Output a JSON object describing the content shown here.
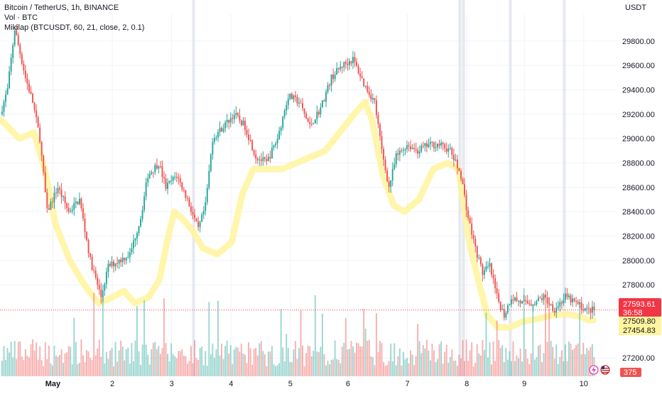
{
  "legend": {
    "symbol_line": "Bitcoin / TetherUS, 1h, BINANCE",
    "volume_line": "Vol · BTC",
    "indicator_line": "Mikilap (BTCUSDT, 60, 21, close, 2, 0.1)"
  },
  "price_axis": {
    "currency": "USDT",
    "ticks": [
      {
        "value": 29800,
        "label": "29800.00"
      },
      {
        "value": 29600,
        "label": "29600.00"
      },
      {
        "value": 29400,
        "label": "29400.00"
      },
      {
        "value": 29200,
        "label": "29200.00"
      },
      {
        "value": 29000,
        "label": "29000.00"
      },
      {
        "value": 28800,
        "label": "28800.00"
      },
      {
        "value": 28600,
        "label": "28600.00"
      },
      {
        "value": 28400,
        "label": "28400.00"
      },
      {
        "value": 28200,
        "label": "28200.00"
      },
      {
        "value": 28000,
        "label": "28000.00"
      },
      {
        "value": 27800,
        "label": "27800.00"
      },
      {
        "value": 27200,
        "label": "27200.00"
      }
    ]
  },
  "badges": {
    "last_price": "27593.61",
    "countdown": "36:58",
    "indicator_upper": "27509.80",
    "indicator_lower": "27454.83",
    "volume": "375"
  },
  "colors": {
    "up": "#26a69a",
    "down": "#ef5350",
    "indicator": "#fff59d",
    "last_price": "#f23645",
    "grid": "#f0f3fa"
  },
  "chart_data": {
    "type": "candlestick",
    "x_ticks": [
      "May",
      "2",
      "3",
      "4",
      "5",
      "6",
      "7",
      "8",
      "9",
      "10"
    ],
    "ylim": [
      27050,
      29950
    ],
    "last_price": 27593.61,
    "price_path": [
      [
        0,
        29200
      ],
      [
        4,
        29400
      ],
      [
        8,
        29900
      ],
      [
        14,
        29500
      ],
      [
        18,
        29300
      ],
      [
        22,
        29000
      ],
      [
        26,
        28400
      ],
      [
        32,
        28600
      ],
      [
        38,
        28400
      ],
      [
        44,
        28500
      ],
      [
        50,
        28000
      ],
      [
        56,
        27700
      ],
      [
        60,
        27950
      ],
      [
        66,
        28000
      ],
      [
        72,
        28050
      ],
      [
        78,
        28350
      ],
      [
        82,
        28700
      ],
      [
        88,
        28800
      ],
      [
        92,
        28600
      ],
      [
        98,
        28700
      ],
      [
        104,
        28500
      ],
      [
        110,
        28250
      ],
      [
        114,
        28450
      ],
      [
        118,
        29000
      ],
      [
        124,
        29100
      ],
      [
        130,
        29200
      ],
      [
        136,
        29100
      ],
      [
        142,
        28850
      ],
      [
        148,
        28800
      ],
      [
        154,
        29000
      ],
      [
        160,
        29350
      ],
      [
        166,
        29300
      ],
      [
        172,
        29100
      ],
      [
        178,
        29250
      ],
      [
        184,
        29500
      ],
      [
        190,
        29600
      ],
      [
        196,
        29650
      ],
      [
        202,
        29450
      ],
      [
        208,
        29300
      ],
      [
        212,
        28900
      ],
      [
        216,
        28600
      ],
      [
        220,
        28850
      ],
      [
        226,
        28950
      ],
      [
        232,
        28900
      ],
      [
        238,
        28950
      ],
      [
        244,
        28950
      ],
      [
        250,
        28900
      ],
      [
        256,
        28700
      ],
      [
        260,
        28350
      ],
      [
        264,
        28100
      ],
      [
        268,
        27900
      ],
      [
        272,
        27950
      ],
      [
        276,
        27700
      ],
      [
        280,
        27550
      ],
      [
        284,
        27700
      ],
      [
        290,
        27650
      ],
      [
        296,
        27650
      ],
      [
        302,
        27700
      ],
      [
        308,
        27600
      ],
      [
        314,
        27700
      ],
      [
        320,
        27650
      ],
      [
        326,
        27593.61
      ]
    ],
    "indicator_path": [
      [
        0,
        29150
      ],
      [
        10,
        29000
      ],
      [
        18,
        29050
      ],
      [
        24,
        28750
      ],
      [
        30,
        28300
      ],
      [
        38,
        28000
      ],
      [
        46,
        27800
      ],
      [
        54,
        27650
      ],
      [
        62,
        27700
      ],
      [
        68,
        27750
      ],
      [
        74,
        27650
      ],
      [
        82,
        27700
      ],
      [
        88,
        27850
      ],
      [
        92,
        28150
      ],
      [
        96,
        28400
      ],
      [
        100,
        28350
      ],
      [
        106,
        28250
      ],
      [
        112,
        28100
      ],
      [
        120,
        28050
      ],
      [
        128,
        28150
      ],
      [
        134,
        28550
      ],
      [
        140,
        28750
      ],
      [
        148,
        28750
      ],
      [
        156,
        28750
      ],
      [
        164,
        28800
      ],
      [
        172,
        28850
      ],
      [
        180,
        28900
      ],
      [
        188,
        29050
      ],
      [
        196,
        29200
      ],
      [
        202,
        29300
      ],
      [
        206,
        29150
      ],
      [
        212,
        28700
      ],
      [
        218,
        28450
      ],
      [
        224,
        28400
      ],
      [
        232,
        28500
      ],
      [
        240,
        28750
      ],
      [
        248,
        28800
      ],
      [
        254,
        28750
      ],
      [
        260,
        28150
      ],
      [
        264,
        27900
      ],
      [
        270,
        27550
      ],
      [
        276,
        27450
      ],
      [
        282,
        27450
      ],
      [
        290,
        27500
      ],
      [
        298,
        27520
      ],
      [
        306,
        27550
      ],
      [
        314,
        27560
      ],
      [
        322,
        27540
      ],
      [
        326,
        27510
      ]
    ],
    "bars": 330,
    "volume_max": 375
  }
}
